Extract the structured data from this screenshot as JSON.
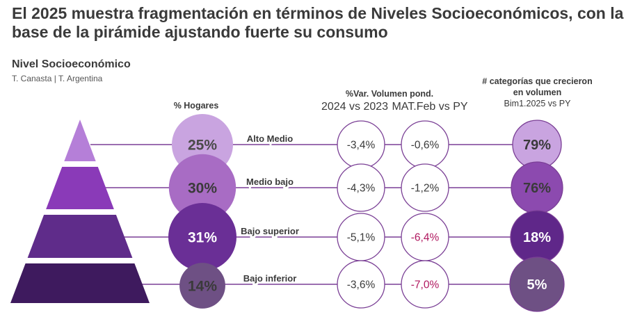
{
  "title": "El 2025 muestra fragmentación en términos de Niveles Socioeconómicos, con la base de la pirámide ajustando fuerte su consumo",
  "subtitle": "Nivel Socioeconómico",
  "source": "T. Canasta | T. Argentina",
  "headers": {
    "hogares": "% Hogares",
    "var_title": "%Var. Volumen pond.",
    "var_col1": "2024 vs 2023",
    "var_col2": "MAT.Feb vs PY",
    "cat_title_1": "# categorías que crecieron",
    "cat_title_2": "en volumen",
    "cat_sub": "Bim1.2025 vs PY"
  },
  "colors": {
    "line": "#7a3f95",
    "circle_border": "#7a3f95",
    "negative_highlight": "#b0185f",
    "text": "#3a3a3a"
  },
  "chart_data": {
    "type": "table",
    "title": "El 2025 muestra fragmentación en términos de Niveles Socioeconómicos, con la base de la pirámide ajustando fuerte su consumo",
    "segments": [
      {
        "name": "Alto Medio",
        "hogares": 25,
        "hogares_label": "25%",
        "var_2024_vs_2023": -3.4,
        "var_2024_label": "-3,4%",
        "var_mat_feb_vs_py": -0.6,
        "var_mat_label": "-0,6%",
        "var_mat_highlight": false,
        "categorias_crecieron": 79,
        "cat_label": "79%",
        "pyramid_color": "#b57fd8",
        "hog_color": "#c9a4e0",
        "hog_text": "#4a4a4a",
        "cat_color": "#c9a4e0",
        "cat_text": "#3a3a3a"
      },
      {
        "name": "Medio bajo",
        "hogares": 30,
        "hogares_label": "30%",
        "var_2024_vs_2023": -4.3,
        "var_2024_label": "-4,3%",
        "var_mat_feb_vs_py": -1.2,
        "var_mat_label": "-1,2%",
        "var_mat_highlight": false,
        "categorias_crecieron": 76,
        "cat_label": "76%",
        "pyramid_color": "#8a3ab8",
        "hog_color": "#a86cc4",
        "hog_text": "#3a3a3a",
        "cat_color": "#8c4aaf",
        "cat_text": "#3a3a3a"
      },
      {
        "name": "Bajo superior",
        "hogares": 31,
        "hogares_label": "31%",
        "var_2024_vs_2023": -5.1,
        "var_2024_label": "-5,1%",
        "var_mat_feb_vs_py": -6.4,
        "var_mat_label": "-6,4%",
        "var_mat_highlight": true,
        "categorias_crecieron": 18,
        "cat_label": "18%",
        "pyramid_color": "#5f2c8a",
        "hog_color": "#6a2f96",
        "hog_text": "#ffffff",
        "cat_color": "#5f2789",
        "cat_text": "#ffffff"
      },
      {
        "name": "Bajo inferior",
        "hogares": 14,
        "hogares_label": "14%",
        "var_2024_vs_2023": -3.6,
        "var_2024_label": "-3,6%",
        "var_mat_feb_vs_py": -7.0,
        "var_mat_label": "-7,0%",
        "var_mat_highlight": true,
        "categorias_crecieron": 5,
        "cat_label": "5%",
        "pyramid_color": "#3e1a5e",
        "hog_color": "#6e5084",
        "hog_text": "#3a3a3a",
        "cat_color": "#6e5084",
        "cat_text": "#ffffff"
      }
    ]
  }
}
